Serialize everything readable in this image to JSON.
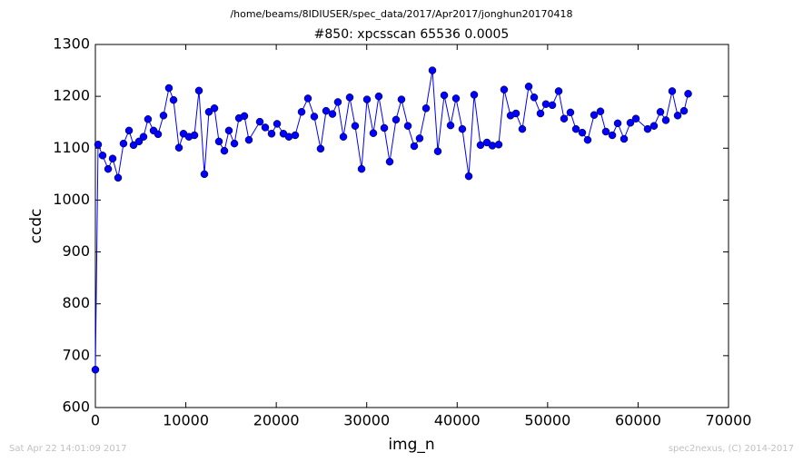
{
  "chart_data": {
    "type": "line",
    "title": "/home/beams/8IDIUSER/spec_data/2017/Apr2017/jonghun20170418",
    "subtitle": "#850: xpcsscan 65536 0.0005",
    "xlabel": "img_n",
    "ylabel": "ccdc",
    "footer_left": "Sat Apr 22 14:01:09 2017",
    "footer_right": "spec2nexus, (C) 2014-2017",
    "xlim": [
      0,
      70000
    ],
    "xticks": [
      0,
      10000,
      20000,
      30000,
      40000,
      50000,
      60000,
      70000
    ],
    "ylim": [
      600,
      1300
    ],
    "yticks": [
      600,
      700,
      800,
      900,
      1000,
      1100,
      1200,
      1300
    ],
    "x": [
      0,
      300,
      800,
      1410,
      1910,
      2510,
      3110,
      3720,
      4220,
      4820,
      5320,
      5820,
      6430,
      6930,
      7530,
      8130,
      8640,
      9240,
      9740,
      10340,
      10950,
      11450,
      12050,
      12550,
      13160,
      13660,
      14260,
      14760,
      15370,
      15870,
      16470,
      16970,
      18180,
      18780,
      19480,
      20090,
      20790,
      21390,
      22090,
      22800,
      23500,
      24200,
      24900,
      25510,
      26210,
      26810,
      27420,
      28120,
      28720,
      29430,
      30030,
      30730,
      31330,
      31940,
      32540,
      33240,
      33840,
      34550,
      35250,
      35850,
      36560,
      37260,
      37860,
      38570,
      39270,
      39870,
      40570,
      41280,
      41880,
      42580,
      43290,
      43890,
      44590,
      45190,
      45900,
      46500,
      47200,
      47910,
      48510,
      49210,
      49810,
      50520,
      51220,
      51820,
      52520,
      53130,
      53830,
      54430,
      55140,
      55840,
      56440,
      57150,
      57750,
      58450,
      59150,
      59760,
      61060,
      61760,
      62470,
      63070,
      63770,
      64380,
      65080,
      65536
    ],
    "series": [
      {
        "color": "#0000ff",
        "values": [
          673,
          1107,
          1086,
          1060,
          1080,
          1043,
          1109,
          1134,
          1106,
          1113,
          1122,
          1156,
          1134,
          1127,
          1163,
          1216,
          1193,
          1101,
          1128,
          1122,
          1125,
          1211,
          1050,
          1170,
          1177,
          1113,
          1095,
          1134,
          1109,
          1158,
          1162,
          1116,
          1151,
          1140,
          1128,
          1147,
          1128,
          1122,
          1125,
          1170,
          1196,
          1161,
          1099,
          1172,
          1166,
          1189,
          1122,
          1198,
          1143,
          1060,
          1194,
          1129,
          1200,
          1139,
          1074,
          1155,
          1194,
          1143,
          1104,
          1119,
          1177,
          1250,
          1094,
          1202,
          1144,
          1196,
          1137,
          1046,
          1203,
          1106,
          1111,
          1105,
          1107,
          1213,
          1163,
          1167,
          1137,
          1219,
          1198,
          1167,
          1185,
          1183,
          1210,
          1157,
          1169,
          1137,
          1130,
          1116,
          1164,
          1171,
          1132,
          1125,
          1148,
          1118,
          1149,
          1157,
          1137,
          1143,
          1170,
          1154,
          1210,
          1163,
          1172,
          1205
        ]
      }
    ]
  }
}
